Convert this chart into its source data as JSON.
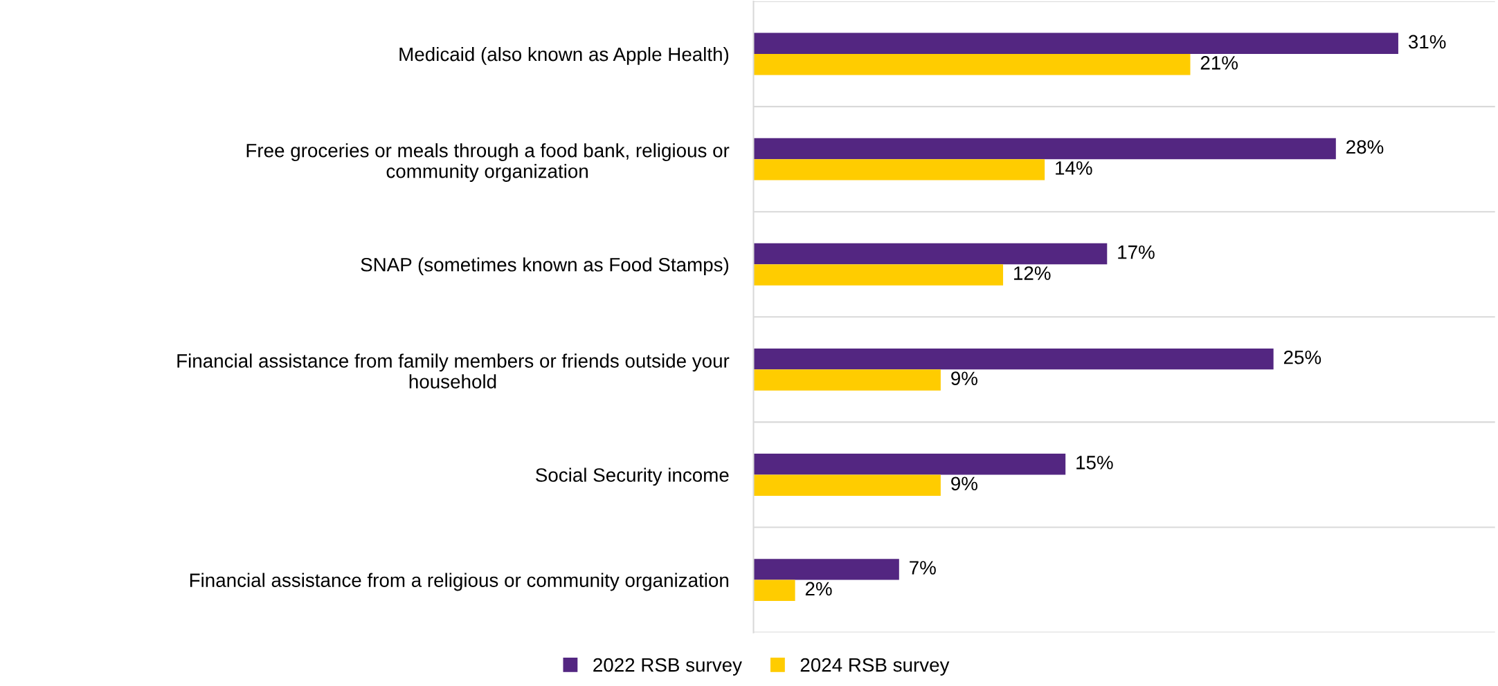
{
  "chart_data": {
    "type": "bar",
    "orientation": "horizontal",
    "categories": [
      "Medicaid (also known as Apple Health)",
      "Free groceries or meals through a food bank, religious or community organization",
      "SNAP (sometimes known as Food Stamps)",
      "Financial assistance from family members or friends outside your household",
      "Social Security income",
      "Financial assistance from a religious or community organization"
    ],
    "series": [
      {
        "name": "2022 RSB survey",
        "color": "#532681",
        "values": [
          31,
          28,
          17,
          25,
          15,
          7
        ],
        "value_labels": [
          "31%",
          "28%",
          "17%",
          "25%",
          "15%",
          "7%"
        ]
      },
      {
        "name": "2024 RSB survey",
        "color": "#ffcc00",
        "values": [
          21,
          14,
          12,
          9,
          9,
          2
        ],
        "value_labels": [
          "21%",
          "14%",
          "12%",
          "9%",
          "9%",
          "2%"
        ]
      }
    ],
    "grid": "y",
    "legend": "bottom"
  }
}
